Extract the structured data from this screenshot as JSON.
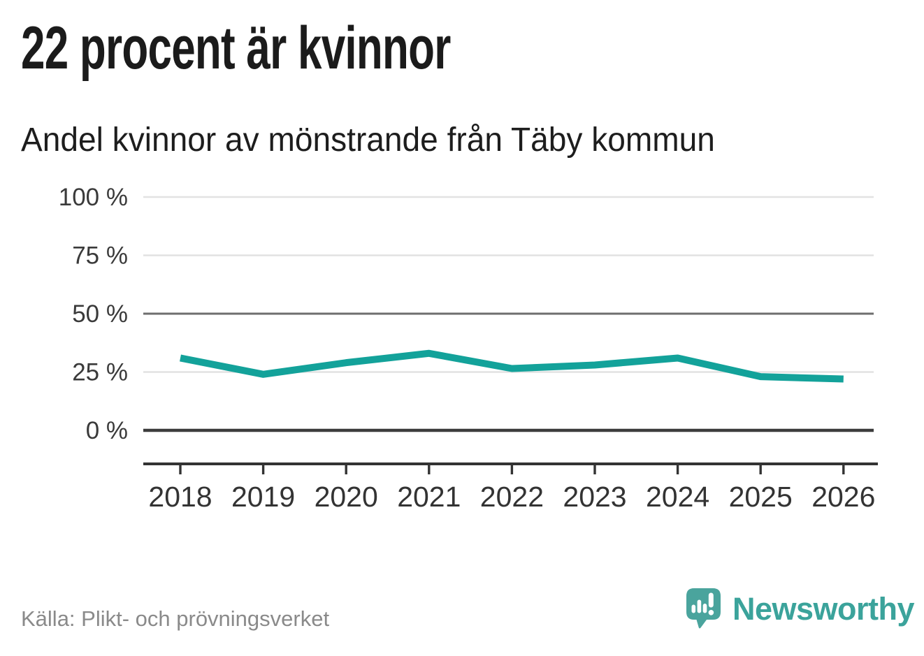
{
  "header": {
    "title": "22 procent är kvinnor",
    "subtitle": "Andel kvinnor av mönstrande från Täby kommun"
  },
  "chart_data": {
    "type": "line",
    "title": "22 procent är kvinnor",
    "subtitle": "Andel kvinnor av mönstrande från Täby kommun",
    "categories": [
      "2018",
      "2019",
      "2020",
      "2021",
      "2022",
      "2023",
      "2024",
      "2025",
      "2026"
    ],
    "series": [
      {
        "name": "Andel kvinnor av mönstrande",
        "values": [
          31,
          24,
          29,
          33,
          26.5,
          28,
          31,
          23,
          22
        ],
        "color": "#13a29a"
      }
    ],
    "unit": "%",
    "xlabel": "",
    "ylabel": "",
    "ylim": [
      0,
      100
    ],
    "yticks": [
      0,
      25,
      50,
      75,
      100
    ],
    "ytick_labels": [
      "0 %",
      "25 %",
      "50 %",
      "75 %",
      "100 %"
    ],
    "emphasized_gridline": 50,
    "baseline_gridline": 0,
    "grid": "horizontal",
    "legend_position": "none"
  },
  "footer": {
    "source": "Källa: Plikt- och prövningsverket",
    "brand": {
      "name": "Newsworthy",
      "color": "#3ba39b",
      "icon": "newsworthy-speech-bubble-bar-chart-icon",
      "icon_color": "#4aa49d"
    }
  }
}
